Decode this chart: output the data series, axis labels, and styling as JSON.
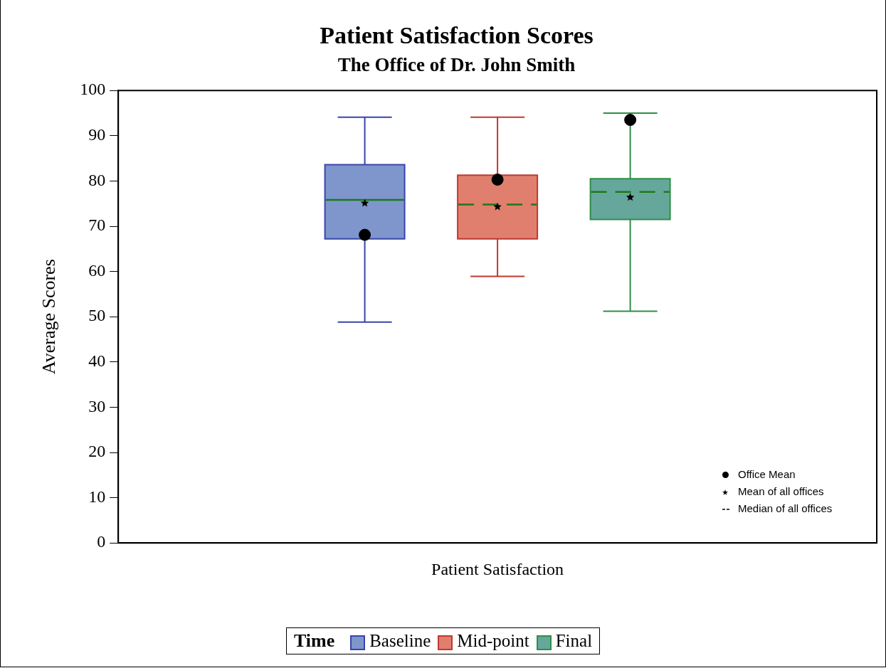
{
  "chart_data": {
    "type": "box",
    "title": "Patient Satisfaction Scores",
    "subtitle": "The Office of Dr. John Smith",
    "ylabel": "Average Scores",
    "legend_title": "Time",
    "categories": [
      "Patient Satisfaction"
    ],
    "ylim": [
      0,
      100
    ],
    "yticks": [
      0,
      10,
      20,
      30,
      40,
      50,
      60,
      70,
      80,
      90,
      100
    ],
    "grid": false,
    "legend": "bottom",
    "marker": "circle",
    "series": [
      {
        "name": "Baseline",
        "color": "#7f96cc",
        "line_style": "solid",
        "boxes": [
          {
            "low": 48.8,
            "q1": 67.2,
            "median": 75.8,
            "q3": 83.6,
            "high": 94.1,
            "mean": 75.1
          }
        ]
      },
      {
        "name": "Mid-point",
        "color": "#e07f6e",
        "line_style": "dashed",
        "boxes": [
          {
            "low": 58.9,
            "q1": 67.2,
            "median": 74.8,
            "q3": 81.3,
            "high": 94.1,
            "mean": 74.3
          }
        ]
      },
      {
        "name": "Final",
        "color": "#66a79c",
        "line_style": "dashed",
        "boxes": [
          {
            "low": 51.2,
            "q1": 71.5,
            "median": 77.6,
            "q3": 80.5,
            "high": 95.0,
            "mean": 76.4
          }
        ]
      },
      {
        "type": "scatter",
        "name": "Office Mean",
        "color": "#000000",
        "x": [
          "Patient Satisfaction"
        ],
        "values": [
          68.1
        ]
      },
      {
        "type": "scatter",
        "color": "#000000",
        "x": [
          "Patient Satisfaction"
        ],
        "values": [
          80.3
        ]
      },
      {
        "type": "scatter",
        "color": "#000000",
        "x": [
          "Patient Satisfaction"
        ],
        "values": [
          93.5
        ]
      }
    ],
    "annotations": [
      "Mean of all offices",
      "Median of all offices"
    ]
  }
}
